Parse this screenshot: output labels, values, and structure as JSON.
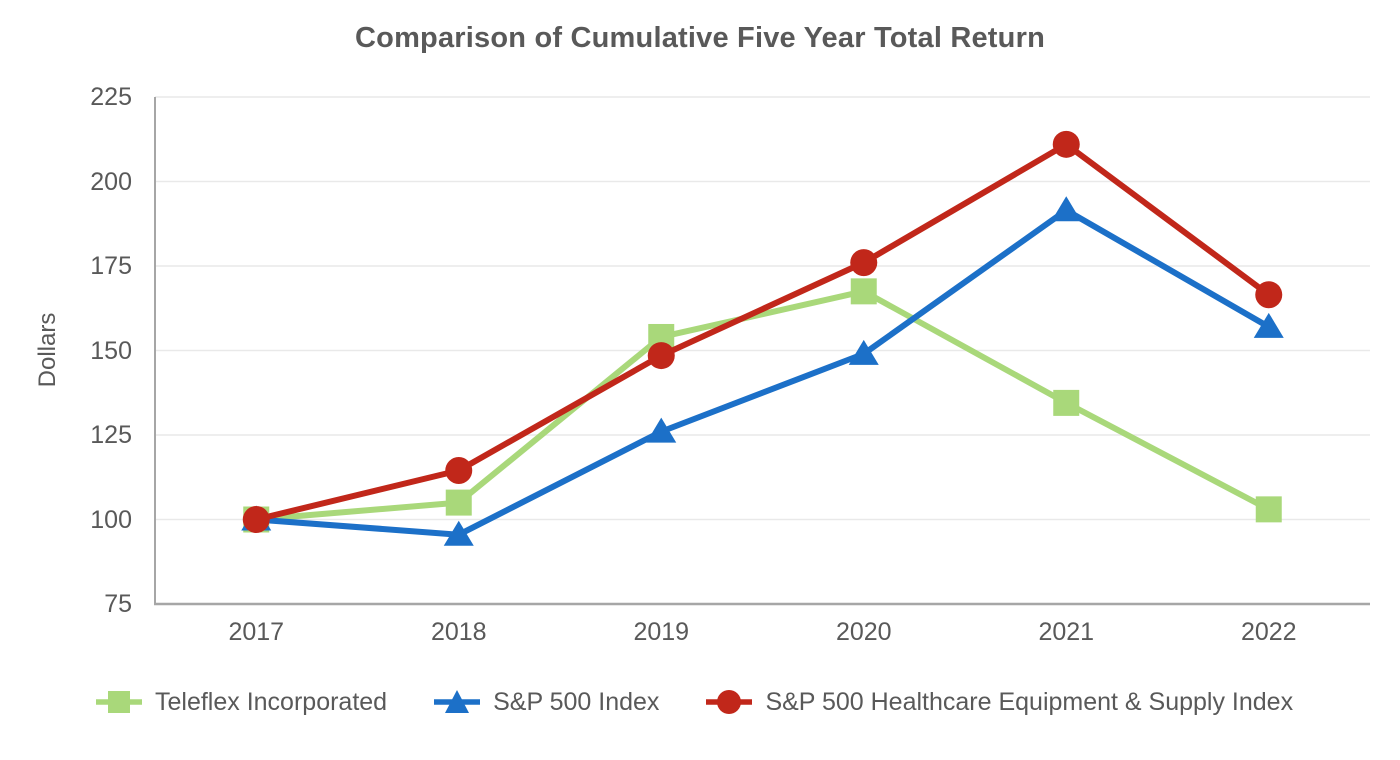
{
  "page": {
    "background": "#ffffff"
  },
  "chart_data": {
    "type": "line",
    "title": "Comparison of Cumulative Five Year Total Return",
    "xlabel": "",
    "ylabel": "Dollars",
    "categories": [
      "2017",
      "2018",
      "2019",
      "2020",
      "2021",
      "2022"
    ],
    "series": [
      {
        "name": "Teleflex Incorporated",
        "marker": "square",
        "color": "#A9D87A",
        "values": [
          100,
          105,
          154,
          167.5,
          134.5,
          103
        ]
      },
      {
        "name": "S&P 500 Index",
        "marker": "triangle",
        "color": "#1C70C8",
        "values": [
          100,
          95.5,
          126,
          149,
          191.5,
          157
        ]
      },
      {
        "name": "S&P 500 Healthcare Equipment & Supply Index",
        "marker": "circle",
        "color": "#C1271A",
        "values": [
          100,
          114.5,
          148.5,
          176,
          211,
          166.5
        ]
      }
    ],
    "y_ticks": [
      75,
      100,
      125,
      150,
      175,
      200,
      225
    ],
    "ylim": [
      75,
      225
    ],
    "grid": "horizontal",
    "legend_position": "bottom",
    "colors": {
      "text": "#595959",
      "gridline": "#E9E9E9",
      "axis": "#A6A6A6",
      "background": "#ffffff"
    }
  }
}
